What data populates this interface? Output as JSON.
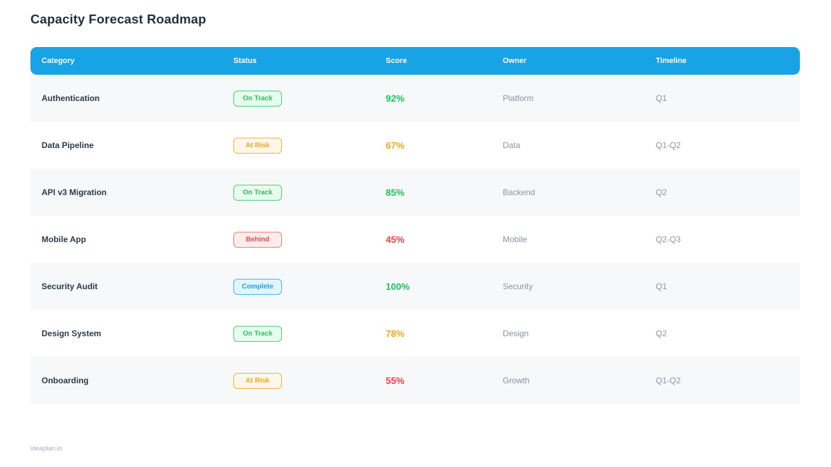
{
  "page": {
    "title": "Capacity Forecast Roadmap",
    "footer": "ideaplan.io"
  },
  "colors": {
    "header_bg": "#17A3E6",
    "score_green": "#21C35F",
    "score_orange": "#F5A623",
    "score_red": "#EE4444",
    "badge_green": "#2FC15C",
    "badge_orange": "#F2A51F",
    "badge_red": "#E94B4B",
    "badge_blue": "#1BA7E3"
  },
  "table": {
    "columns": [
      "Category",
      "Status",
      "Score",
      "Owner",
      "Timeline"
    ],
    "rows": [
      {
        "category": "Authentication",
        "status": "On Track",
        "status_type": "on-track",
        "score": "92%",
        "score_color": "green",
        "owner": "Platform",
        "timeline": "Q1"
      },
      {
        "category": "Data Pipeline",
        "status": "At Risk",
        "status_type": "at-risk",
        "score": "67%",
        "score_color": "orange",
        "owner": "Data",
        "timeline": "Q1-Q2"
      },
      {
        "category": "API v3 Migration",
        "status": "On Track",
        "status_type": "on-track",
        "score": "85%",
        "score_color": "green",
        "owner": "Backend",
        "timeline": "Q2"
      },
      {
        "category": "Mobile App",
        "status": "Behind",
        "status_type": "behind",
        "score": "45%",
        "score_color": "red",
        "owner": "Mobile",
        "timeline": "Q2-Q3"
      },
      {
        "category": "Security Audit",
        "status": "Complete",
        "status_type": "complete",
        "score": "100%",
        "score_color": "green",
        "owner": "Security",
        "timeline": "Q1"
      },
      {
        "category": "Design System",
        "status": "On Track",
        "status_type": "on-track",
        "score": "78%",
        "score_color": "orange",
        "owner": "Design",
        "timeline": "Q2"
      },
      {
        "category": "Onboarding",
        "status": "At Risk",
        "status_type": "at-risk",
        "score": "55%",
        "score_color": "red",
        "owner": "Growth",
        "timeline": "Q1-Q2"
      }
    ]
  }
}
